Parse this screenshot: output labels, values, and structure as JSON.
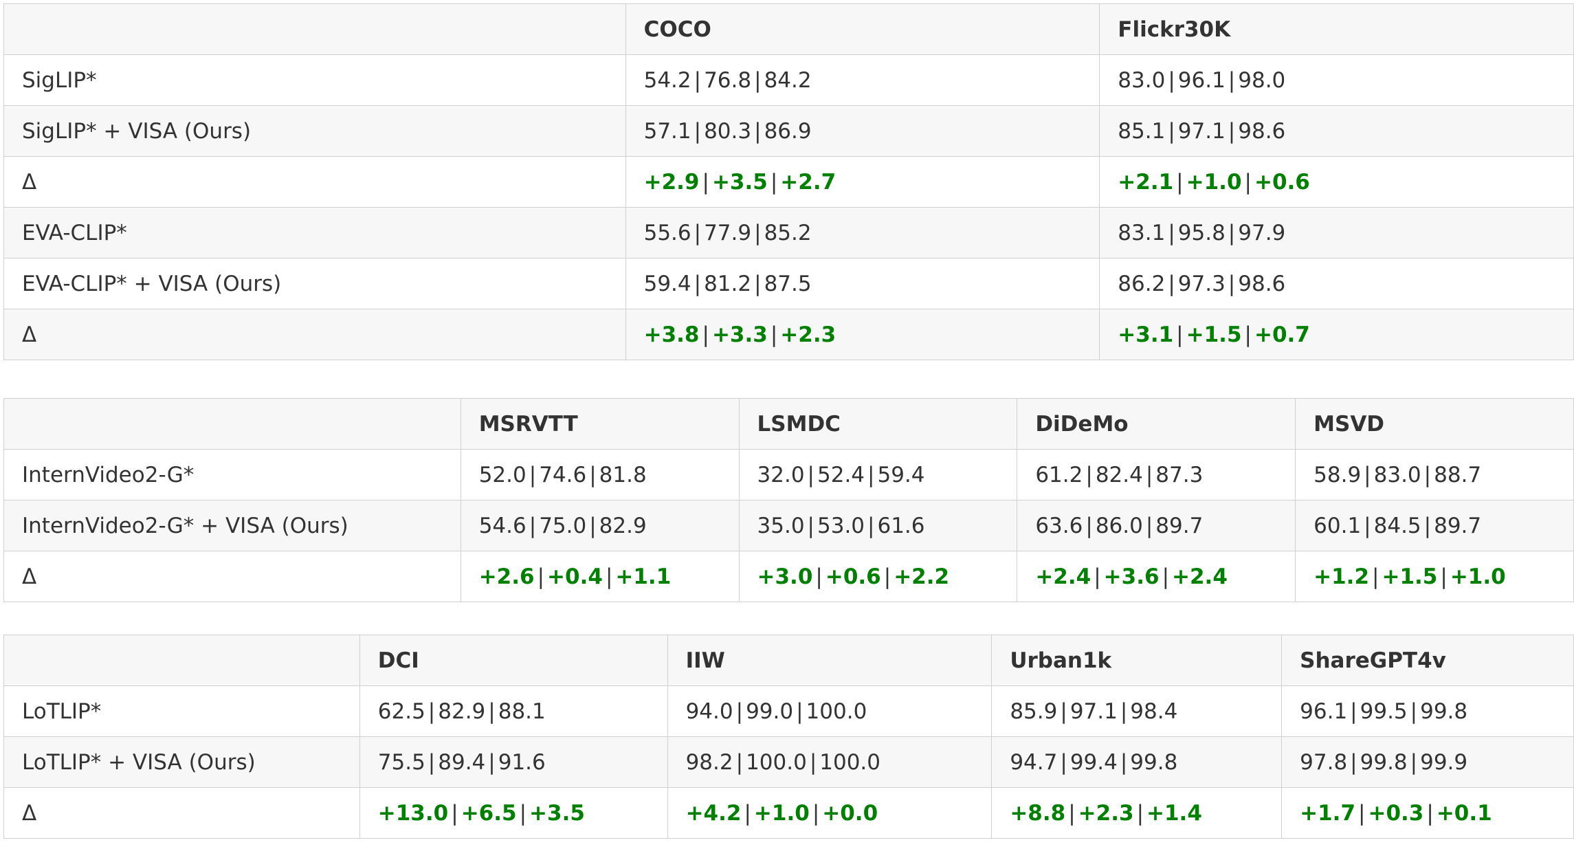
{
  "tables": [
    {
      "id": "image",
      "columns": [
        "",
        "COCO",
        "Flickr30K"
      ],
      "rows": [
        {
          "label": "SigLIP*",
          "delta": false,
          "cells": [
            [
              "54.2",
              "76.8",
              "84.2"
            ],
            [
              "83.0",
              "96.1",
              "98.0"
            ]
          ]
        },
        {
          "label": "SigLIP* + VISA (Ours)",
          "delta": false,
          "cells": [
            [
              "57.1",
              "80.3",
              "86.9"
            ],
            [
              "85.1",
              "97.1",
              "98.6"
            ]
          ]
        },
        {
          "label": "Δ",
          "delta": true,
          "cells": [
            [
              "+2.9",
              "+3.5",
              "+2.7"
            ],
            [
              "+2.1",
              "+1.0",
              "+0.6"
            ]
          ]
        },
        {
          "label": "EVA-CLIP*",
          "delta": false,
          "cells": [
            [
              "55.6",
              "77.9",
              "85.2"
            ],
            [
              "83.1",
              "95.8",
              "97.9"
            ]
          ]
        },
        {
          "label": "EVA-CLIP* + VISA (Ours)",
          "delta": false,
          "cells": [
            [
              "59.4",
              "81.2",
              "87.5"
            ],
            [
              "86.2",
              "97.3",
              "98.6"
            ]
          ]
        },
        {
          "label": "Δ",
          "delta": true,
          "cells": [
            [
              "+3.8",
              "+3.3",
              "+2.3"
            ],
            [
              "+3.1",
              "+1.5",
              "+0.7"
            ]
          ]
        }
      ]
    },
    {
      "id": "video",
      "columns": [
        "",
        "MSRVTT",
        "LSMDC",
        "DiDeMo",
        "MSVD"
      ],
      "rows": [
        {
          "label": "InternVideo2-G*",
          "delta": false,
          "cells": [
            [
              "52.0",
              "74.6",
              "81.8"
            ],
            [
              "32.0",
              "52.4",
              "59.4"
            ],
            [
              "61.2",
              "82.4",
              "87.3"
            ],
            [
              "58.9",
              "83.0",
              "88.7"
            ]
          ]
        },
        {
          "label": "InternVideo2-G* + VISA (Ours)",
          "delta": false,
          "cells": [
            [
              "54.6",
              "75.0",
              "82.9"
            ],
            [
              "35.0",
              "53.0",
              "61.6"
            ],
            [
              "63.6",
              "86.0",
              "89.7"
            ],
            [
              "60.1",
              "84.5",
              "89.7"
            ]
          ]
        },
        {
          "label": "Δ",
          "delta": true,
          "cells": [
            [
              "+2.6",
              "+0.4",
              "+1.1"
            ],
            [
              "+3.0",
              "+0.6",
              "+2.2"
            ],
            [
              "+2.4",
              "+3.6",
              "+2.4"
            ],
            [
              "+1.2",
              "+1.5",
              "+1.0"
            ]
          ]
        }
      ]
    },
    {
      "id": "long",
      "columns": [
        "",
        "DCI",
        "IIW",
        "Urban1k",
        "ShareGPT4v"
      ],
      "rows": [
        {
          "label": "LoTLIP*",
          "delta": false,
          "cells": [
            [
              "62.5",
              "82.9",
              "88.1"
            ],
            [
              "94.0",
              "99.0",
              "100.0"
            ],
            [
              "85.9",
              "97.1",
              "98.4"
            ],
            [
              "96.1",
              "99.5",
              "99.8"
            ]
          ]
        },
        {
          "label": "LoTLIP* + VISA (Ours)",
          "delta": false,
          "cells": [
            [
              "75.5",
              "89.4",
              "91.6"
            ],
            [
              "98.2",
              "100.0",
              "100.0"
            ],
            [
              "94.7",
              "99.4",
              "99.8"
            ],
            [
              "97.8",
              "99.8",
              "99.9"
            ]
          ]
        },
        {
          "label": "Δ",
          "delta": true,
          "cells": [
            [
              "+13.0",
              "+6.5",
              "+3.5"
            ],
            [
              "+4.2",
              "+1.0",
              "+0.0"
            ],
            [
              "+8.8",
              "+2.3",
              "+1.4"
            ],
            [
              "+1.7",
              "+0.3",
              "+0.1"
            ]
          ]
        }
      ]
    }
  ],
  "colors": {
    "delta_text": "#008000",
    "body_text": "#333333",
    "border": "#d0d0d0",
    "shaded_row": "#f7f7f7"
  }
}
